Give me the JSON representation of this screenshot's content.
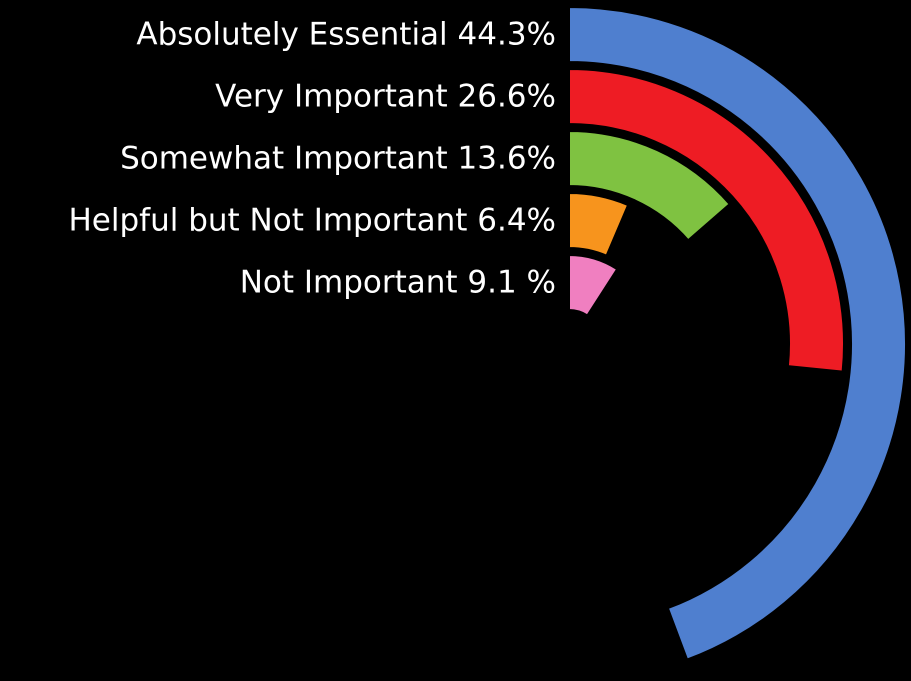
{
  "chart_data": {
    "type": "radial-bar",
    "title": "",
    "series": [
      {
        "name": "Absolutely Essential",
        "label": "Absolutely Essential 44.3%",
        "value": 44.3,
        "color": "#4f7fcf"
      },
      {
        "name": "Very Important",
        "label": "Very Important 26.6%",
        "value": 26.6,
        "color": "#ee1c24"
      },
      {
        "name": "Somewhat Important",
        "label": "Somewhat Important 13.6%",
        "value": 13.6,
        "color": "#7fc241"
      },
      {
        "name": "Helpful but Not Important",
        "label": "Helpful but Not Important 6.4%",
        "value": 6.4,
        "color": "#f7941d"
      },
      {
        "name": "Not Important",
        "label": "Not Important 9.1 %",
        "value": 9.1,
        "color": "#f07fc0"
      }
    ],
    "max_value": 100,
    "grid": false,
    "legend": "left"
  }
}
